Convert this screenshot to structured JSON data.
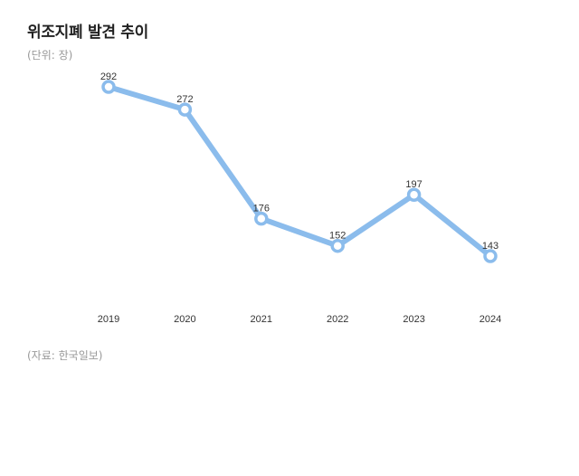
{
  "header": {
    "title": "위조지폐 발견 추이",
    "unit_note": "(단위: 장)"
  },
  "footer": {
    "source": "(자료: 한국일보)"
  },
  "colors": {
    "line": "#8bbcec",
    "marker_fill": "#ffffff",
    "title": "#222222",
    "note": "#999999"
  },
  "chart_data": {
    "type": "line",
    "categories": [
      "2019",
      "2020",
      "2021",
      "2022",
      "2023",
      "2024"
    ],
    "series": [
      {
        "values": [
          292,
          272,
          176,
          152,
          197,
          143
        ]
      }
    ],
    "title": "위조지폐 발견 추이",
    "ylabel": "",
    "xlabel": "",
    "ylim": [
      0,
      320
    ],
    "grid": false,
    "legend": "none",
    "data_labels": true
  }
}
